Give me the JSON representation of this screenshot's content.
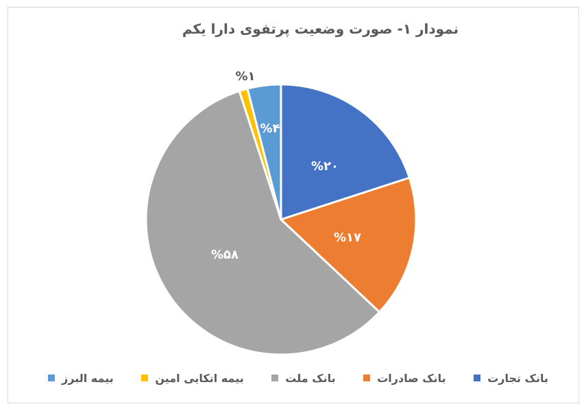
{
  "chart_data": {
    "type": "pie",
    "title": "نمودار ۱-  صورت وضعیت پرتفوی دارا یکم",
    "start_angle_deg": 0,
    "direction": "clockwise",
    "slices": [
      {
        "label": "بانک تجارت",
        "value": 20,
        "display": "%۲۰",
        "color": "#4472C4",
        "label_pos": "inside"
      },
      {
        "label": "بانک صادرات",
        "value": 17,
        "display": "%۱۷",
        "color": "#ED7D31",
        "label_pos": "inside"
      },
      {
        "label": "بانک ملت",
        "value": 58,
        "display": "%۵۸",
        "color": "#A5A5A5",
        "label_pos": "inside"
      },
      {
        "label": "بیمه اتکایی امین",
        "value": 1,
        "display": "%۱",
        "color": "#FFC000",
        "label_pos": "outside"
      },
      {
        "label": "بیمه البرز",
        "value": 4,
        "display": "%۴",
        "color": "#5B9BD5",
        "label_pos": "inside"
      }
    ],
    "legend": {
      "position": "bottom",
      "entries": [
        "بانک تجارت",
        "بانک صادرات",
        "بانک ملت",
        "بیمه اتکایی امین",
        "بیمه البرز"
      ]
    }
  },
  "chart": {
    "title": "نمودار ۱-  صورت وضعیت پرتفوی دارا یکم",
    "labels": {
      "tejarat": "%۲۰",
      "saderat": "%۱۷",
      "mellat": "%۵۸",
      "amin": "%۱",
      "alborz": "%۴"
    }
  },
  "legend": {
    "items": [
      {
        "label": "بیمه البرز",
        "color": "#5B9BD5"
      },
      {
        "label": "بیمه اتکایی امین",
        "color": "#FFC000"
      },
      {
        "label": "بانک ملت",
        "color": "#A5A5A5"
      },
      {
        "label": "بانک صادرات",
        "color": "#ED7D31"
      },
      {
        "label": "بانک تجارت",
        "color": "#4472C4"
      }
    ]
  }
}
